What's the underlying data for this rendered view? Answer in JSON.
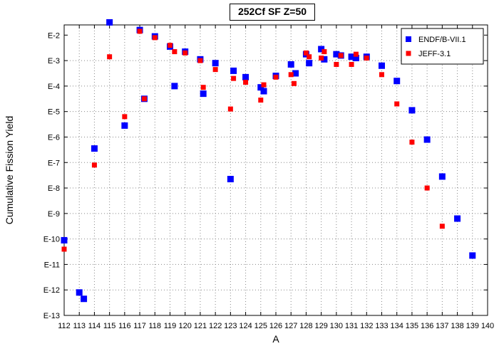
{
  "chart_data": {
    "type": "scatter",
    "title": "252Cf SF Z=50",
    "xlabel": "A",
    "ylabel": "Cumulative Fission Yield",
    "xlim": [
      112,
      140
    ],
    "ylim": [
      -13,
      -1.6
    ],
    "y_scale": "log10",
    "grid": true,
    "legend_position": "top-right",
    "x_ticks": [
      "112",
      "113",
      "114",
      "115",
      "116",
      "117",
      "118",
      "119",
      "120",
      "121",
      "122",
      "123",
      "124",
      "125",
      "126",
      "127",
      "128",
      "129",
      "130",
      "131",
      "132",
      "133",
      "134",
      "135",
      "136",
      "137",
      "138",
      "139",
      "140"
    ],
    "y_ticks": [
      "E-2",
      "E-3",
      "E-4",
      "E-5",
      "E-6",
      "E-7",
      "E-8",
      "E-9",
      "E-10",
      "E-11",
      "E-12",
      "E-13"
    ],
    "series": [
      {
        "name": "ENDF/B-VII.1",
        "color": "#0000ff",
        "marker": "square",
        "points": [
          {
            "x": 112,
            "y": -10.05
          },
          {
            "x": 113,
            "y": -12.1
          },
          {
            "x": 113.3,
            "y": -12.35
          },
          {
            "x": 114,
            "y": -6.45
          },
          {
            "x": 115,
            "y": -1.5
          },
          {
            "x": 116,
            "y": -5.55
          },
          {
            "x": 117,
            "y": -1.8
          },
          {
            "x": 117.3,
            "y": -4.5
          },
          {
            "x": 118,
            "y": -2.05
          },
          {
            "x": 119,
            "y": -2.45
          },
          {
            "x": 119.3,
            "y": -4.0
          },
          {
            "x": 120,
            "y": -2.65
          },
          {
            "x": 121,
            "y": -2.95
          },
          {
            "x": 121.2,
            "y": -4.3
          },
          {
            "x": 122,
            "y": -3.1
          },
          {
            "x": 123,
            "y": -7.65
          },
          {
            "x": 123.2,
            "y": -3.4
          },
          {
            "x": 124,
            "y": -3.65
          },
          {
            "x": 125,
            "y": -4.05
          },
          {
            "x": 125.2,
            "y": -4.2
          },
          {
            "x": 126,
            "y": -3.6
          },
          {
            "x": 127,
            "y": -3.15
          },
          {
            "x": 127.3,
            "y": -3.5
          },
          {
            "x": 128,
            "y": -2.75
          },
          {
            "x": 128.2,
            "y": -3.1
          },
          {
            "x": 129,
            "y": -2.55
          },
          {
            "x": 129.2,
            "y": -2.95
          },
          {
            "x": 130,
            "y": -2.75
          },
          {
            "x": 130.3,
            "y": -2.8
          },
          {
            "x": 131,
            "y": -2.85
          },
          {
            "x": 131.3,
            "y": -2.9
          },
          {
            "x": 132,
            "y": -2.85
          },
          {
            "x": 133,
            "y": -3.2
          },
          {
            "x": 134,
            "y": -3.8
          },
          {
            "x": 135,
            "y": -4.95
          },
          {
            "x": 136,
            "y": -6.1
          },
          {
            "x": 137,
            "y": -7.55
          },
          {
            "x": 138,
            "y": -9.2
          },
          {
            "x": 139,
            "y": -10.65
          }
        ]
      },
      {
        "name": "JEFF-3.1",
        "color": "#ff0000",
        "marker": "square",
        "points": [
          {
            "x": 112,
            "y": -10.4
          },
          {
            "x": 114,
            "y": -7.1
          },
          {
            "x": 115,
            "y": -2.85
          },
          {
            "x": 116,
            "y": -5.2
          },
          {
            "x": 117,
            "y": -1.85
          },
          {
            "x": 117.3,
            "y": -4.5
          },
          {
            "x": 118,
            "y": -2.1
          },
          {
            "x": 119,
            "y": -2.4
          },
          {
            "x": 119.3,
            "y": -2.65
          },
          {
            "x": 120,
            "y": -2.7
          },
          {
            "x": 121,
            "y": -3.0
          },
          {
            "x": 121.2,
            "y": -4.05
          },
          {
            "x": 122,
            "y": -3.35
          },
          {
            "x": 123,
            "y": -4.9
          },
          {
            "x": 123.2,
            "y": -3.7
          },
          {
            "x": 124,
            "y": -3.85
          },
          {
            "x": 125,
            "y": -4.55
          },
          {
            "x": 125.2,
            "y": -3.95
          },
          {
            "x": 126,
            "y": -3.65
          },
          {
            "x": 127,
            "y": -3.55
          },
          {
            "x": 127.2,
            "y": -3.9
          },
          {
            "x": 128,
            "y": -2.7
          },
          {
            "x": 128.2,
            "y": -2.85
          },
          {
            "x": 129,
            "y": -2.9
          },
          {
            "x": 129.2,
            "y": -2.65
          },
          {
            "x": 130,
            "y": -3.15
          },
          {
            "x": 130.3,
            "y": -2.8
          },
          {
            "x": 131,
            "y": -3.15
          },
          {
            "x": 131.3,
            "y": -2.75
          },
          {
            "x": 132,
            "y": -2.9
          },
          {
            "x": 133,
            "y": -3.55
          },
          {
            "x": 134,
            "y": -4.7
          },
          {
            "x": 135,
            "y": -6.2
          },
          {
            "x": 136,
            "y": -8.0
          },
          {
            "x": 137,
            "y": -9.5
          }
        ]
      }
    ]
  }
}
